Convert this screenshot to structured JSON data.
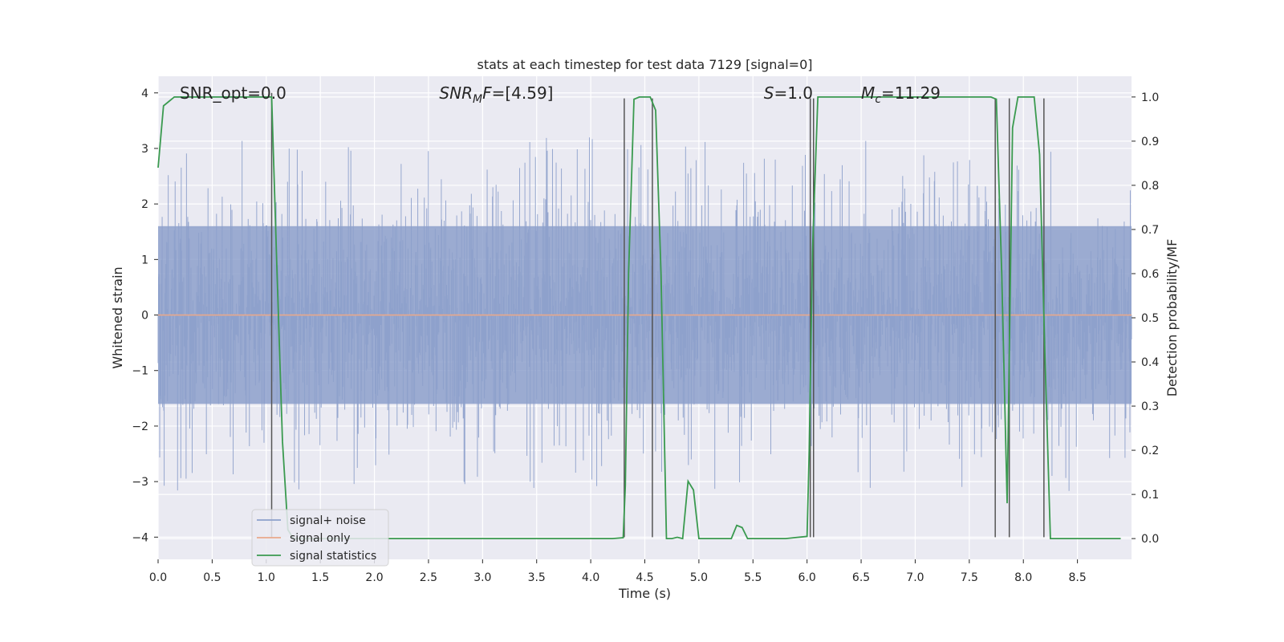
{
  "chart_data": {
    "type": "line",
    "title": "stats at each timestep for test data 7129 [signal=0]",
    "xlabel": "Time (s)",
    "ylabel": "Whitened strain",
    "y2label": "Detection probability/MF",
    "xlim": [
      0.0,
      9.0
    ],
    "ylim": [
      -4.4,
      4.3
    ],
    "y2lim": [
      -0.047,
      1.047
    ],
    "xticks": [
      "0.0",
      "0.5",
      "1.0",
      "1.5",
      "2.0",
      "2.5",
      "3.0",
      "3.5",
      "4.0",
      "4.5",
      "5.0",
      "5.5",
      "6.0",
      "6.5",
      "7.0",
      "7.5",
      "8.0",
      "8.5"
    ],
    "yticks": [
      "4",
      "3",
      "2",
      "1",
      "0",
      "−1",
      "−2",
      "−3",
      "−4"
    ],
    "y2ticks": [
      "1.0",
      "0.9",
      "0.8",
      "0.7",
      "0.6",
      "0.5",
      "0.4",
      "0.3",
      "0.2",
      "0.1",
      "0.0"
    ],
    "grid": true,
    "legend_position": "lower-left",
    "annotations": [
      {
        "text": "SNR_opt=0.0",
        "x": 0.2,
        "y": 4.0
      },
      {
        "text": "=[4.59]",
        "math_prefix": "SNR",
        "math_sub": "M",
        "math_suffix": "F",
        "x": 2.6,
        "y": 4.0
      },
      {
        "text": "=1.0",
        "math_prefix": "S",
        "x": 5.6,
        "y": 4.0
      },
      {
        "text": "=11.29",
        "math_prefix": "M",
        "math_sub": "c",
        "x": 6.5,
        "y": 4.0
      }
    ],
    "noise_envelope": {
      "core": 1.6,
      "typical_peak": 2.6,
      "max": 3.9,
      "min": -4.0
    },
    "series": [
      {
        "name": "signal+ noise",
        "color": "#8da0cb",
        "axis": "left",
        "kind": "noise"
      },
      {
        "name": "signal only",
        "color": "#e8a88b",
        "axis": "left",
        "values": [
          [
            0.0,
            0.0
          ],
          [
            9.0,
            0.0
          ]
        ]
      },
      {
        "name": "signal statistics",
        "color": "#3a9a4f",
        "axis": "right",
        "x": [
          0.0,
          0.05,
          0.1,
          0.15,
          0.2,
          0.3,
          0.4,
          0.5,
          0.6,
          0.7,
          0.8,
          0.9,
          1.0,
          1.05,
          1.1,
          1.15,
          1.2,
          1.25,
          1.3,
          1.4,
          1.6,
          2.0,
          2.5,
          3.0,
          3.5,
          4.0,
          4.2,
          4.3,
          4.32,
          4.35,
          4.4,
          4.45,
          4.5,
          4.55,
          4.6,
          4.65,
          4.7,
          4.75,
          4.8,
          4.85,
          4.9,
          4.95,
          5.0,
          5.1,
          5.2,
          5.3,
          5.35,
          5.4,
          5.45,
          5.5,
          5.6,
          5.8,
          6.0,
          6.02,
          6.05,
          6.1,
          6.15,
          6.2,
          6.5,
          7.0,
          7.5,
          7.7,
          7.75,
          7.8,
          7.85,
          7.9,
          7.95,
          8.0,
          8.05,
          8.1,
          8.15,
          8.2,
          8.25,
          8.3,
          8.35,
          8.5,
          8.7,
          8.9
        ],
        "values": [
          0.84,
          0.98,
          0.99,
          1.0,
          1.0,
          1.0,
          1.0,
          1.0,
          1.0,
          1.0,
          1.0,
          1.0,
          1.0,
          1.0,
          0.6,
          0.22,
          0.02,
          0.0,
          0.0,
          0.0,
          0.0,
          0.0,
          0.0,
          0.0,
          0.0,
          0.0,
          0.0,
          0.002,
          0.12,
          0.6,
          0.995,
          1.0,
          1.0,
          1.0,
          0.97,
          0.6,
          0.0,
          0.0,
          0.003,
          0.0,
          0.13,
          0.11,
          0.0,
          0.0,
          0.0,
          0.0,
          0.03,
          0.025,
          0.0,
          0.0,
          0.0,
          0.0,
          0.005,
          0.2,
          0.65,
          1.0,
          1.0,
          1.0,
          1.0,
          1.0,
          1.0,
          1.0,
          0.995,
          0.6,
          0.08,
          0.93,
          1.0,
          1.0,
          1.0,
          1.0,
          0.87,
          0.41,
          0.0,
          0.0,
          0.0,
          0.0,
          0.0,
          0.0
        ]
      }
    ],
    "vertical_lines": [
      {
        "x": 1.05,
        "y_top": 4.0,
        "y_bottom": -4.0
      },
      {
        "x": 4.31,
        "y_top": 3.9,
        "y_bottom": -4.0
      },
      {
        "x": 4.57,
        "y_top": 3.9,
        "y_bottom": -4.0
      },
      {
        "x": 6.03,
        "y_top": 3.9,
        "y_bottom": -4.0
      },
      {
        "x": 6.06,
        "y_top": 3.9,
        "y_bottom": -4.0
      },
      {
        "x": 7.74,
        "y_top": 3.9,
        "y_bottom": -4.0
      },
      {
        "x": 7.87,
        "y_top": 3.9,
        "y_bottom": -4.0
      },
      {
        "x": 8.19,
        "y_top": 3.9,
        "y_bottom": -4.0
      }
    ]
  }
}
